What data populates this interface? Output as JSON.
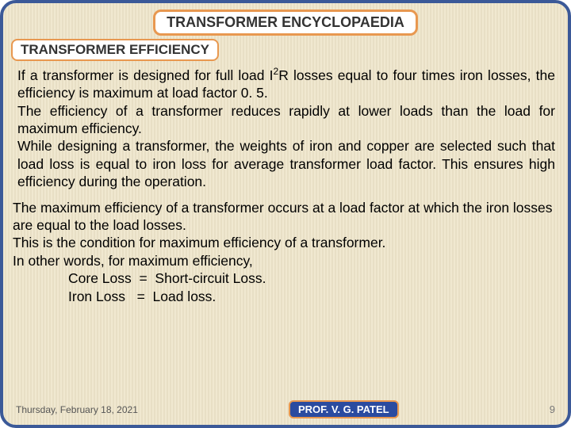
{
  "header": {
    "title": "TRANSFORMER ENCYCLOPAEDIA",
    "subtitle": "TRANSFORMER EFFICIENCY"
  },
  "body": {
    "p1_a": "If a transformer is designed for full load I",
    "p1_sup": "2",
    "p1_b": "R losses equal to four times iron losses, the efficiency is maximum at load factor 0. 5.",
    "p2": "The efficiency of a transformer reduces rapidly at lower loads than the load for maximum efficiency.",
    "p3": "While designing a transformer, the weights of iron and copper are selected such that load loss is equal to iron loss for average transformer load factor. This ensures high efficiency during the operation.",
    "p4": "The maximum efficiency  of a transformer occurs at a load factor at which the iron losses are equal to the load losses.",
    "p5": "This is the condition for maximum efficiency of a transformer.",
    "p6": "In other words, for maximum efficiency,",
    "eq1": "Core Loss  =  Short-circuit Loss.",
    "eq2": "Iron Loss   =  Load loss."
  },
  "footer": {
    "date": "Thursday, February 18, 2021",
    "author": "PROF. V. G. PATEL",
    "page": "9"
  },
  "colors": {
    "border": "#3b5998",
    "pill_border": "#e89850",
    "prof_bg": "#2a4ba0"
  }
}
